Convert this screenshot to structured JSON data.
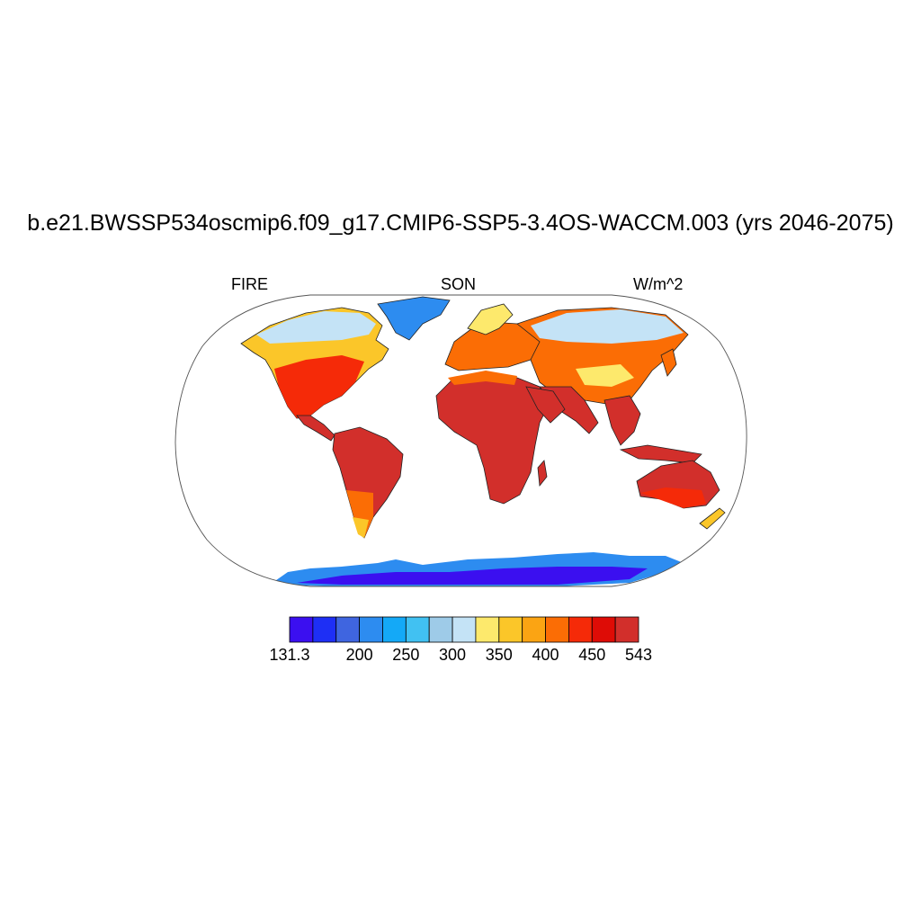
{
  "header": {
    "title": "b.e21.BWSSP534oscmip6.f09_g17.CMIP6-SSP5-3.4OS-WACCM.003 (yrs 2046-2075)",
    "left_label": "FIRE",
    "center_label": "SON",
    "right_label": "W/m^2"
  },
  "colorbar": {
    "colors": [
      "#3b0ff0",
      "#1e2ff5",
      "#3f65e0",
      "#2d8cf0",
      "#14a9f7",
      "#41c1f2",
      "#9ecbe8",
      "#c4e3f6",
      "#fde96c",
      "#fbc629",
      "#fba413",
      "#fb6d05",
      "#f52a08",
      "#de0c06",
      "#d22f2b"
    ],
    "tick_labels": [
      "131.3",
      "200",
      "250",
      "300",
      "350",
      "400",
      "450",
      "543"
    ]
  },
  "map": {
    "projection": "robinson",
    "field": "FIRE",
    "season": "SON",
    "units": "W/m^2"
  }
}
